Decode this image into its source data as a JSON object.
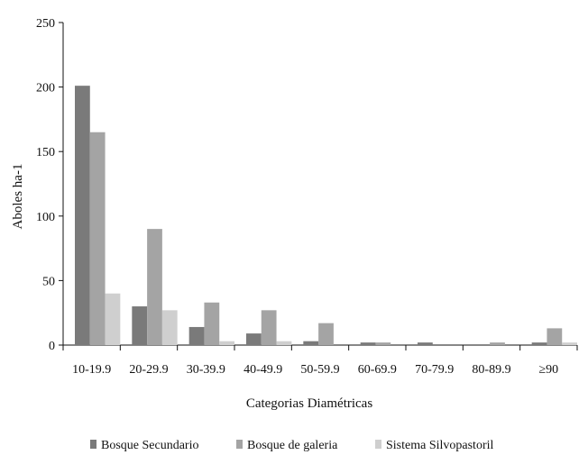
{
  "chart_data": {
    "type": "bar",
    "categories": [
      "10-19.9",
      "20-29.9",
      "30-39.9",
      "40-49.9",
      "50-59.9",
      "60-69.9",
      "70-79.9",
      "80-89.9",
      "≥90"
    ],
    "series": [
      {
        "name": "Bosque Secundario",
        "color": "#7a7a7a",
        "values": [
          201,
          30,
          14,
          9,
          3,
          2,
          2,
          0,
          2
        ]
      },
      {
        "name": "Bosque de galeria",
        "color": "#a4a4a4",
        "values": [
          165,
          90,
          33,
          27,
          17,
          2,
          0,
          2,
          13
        ]
      },
      {
        "name": "Sistema Silvopastoril",
        "color": "#cfcfcf",
        "values": [
          40,
          27,
          3,
          3,
          0,
          0,
          0,
          0,
          2
        ]
      }
    ],
    "xlabel": "Categorias Diamétricas",
    "ylabel": "Aboles ha-1",
    "ylim": [
      0,
      250
    ],
    "yticks": [
      0,
      50,
      100,
      150,
      200,
      250
    ],
    "grid": false,
    "legend_position": "bottom"
  }
}
